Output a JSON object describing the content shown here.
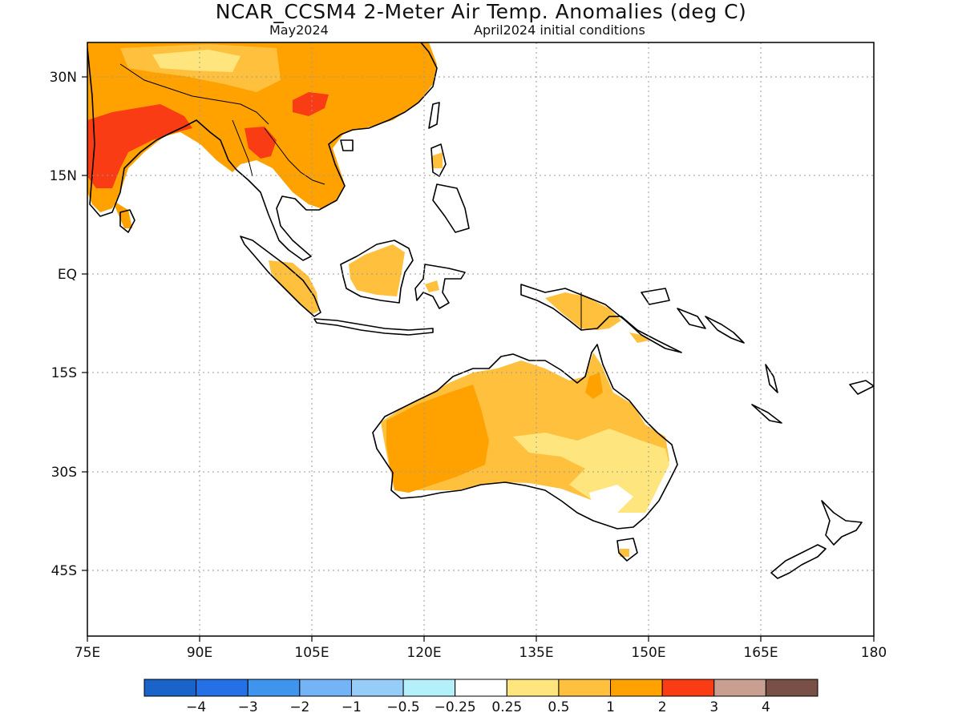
{
  "header": {
    "title": "NCAR_CCSM4 2-Meter Air Temp. Anomalies (deg C)",
    "forecast_month": "May2024",
    "init_conditions": "April2024 initial conditions"
  },
  "map": {
    "lon_range": [
      75,
      180
    ],
    "lat_range": [
      -54,
      35
    ],
    "lon_ticks": [
      "75E",
      "90E",
      "105E",
      "120E",
      "135E",
      "150E",
      "165E",
      "180"
    ],
    "lat_ticks": [
      "30N",
      "15N",
      "EQ",
      "15S",
      "30S",
      "45S"
    ],
    "grid": "dotted",
    "land_outline_color": "#000000"
  },
  "colorbar": {
    "colors": [
      "#1a64c9",
      "#2470e6",
      "#3f94ee",
      "#74b4f6",
      "#96cdf8",
      "#b4f0fa",
      "#ffffff",
      "#ffe57d",
      "#ffc03d",
      "#ffa200",
      "#fa3c14",
      "#c89f91",
      "#785046"
    ],
    "labels": [
      "−4",
      "−3",
      "−2",
      "−1",
      "−0.5",
      "−0.25",
      "0.25",
      "0.5",
      "1",
      "2",
      "3",
      "4"
    ]
  },
  "anomaly_colors": {
    "0.25-0.5": "#ffe57d",
    "0.5-1": "#ffc03d",
    "1-2": "#ffa200",
    "2-3": "#fa3c14"
  }
}
